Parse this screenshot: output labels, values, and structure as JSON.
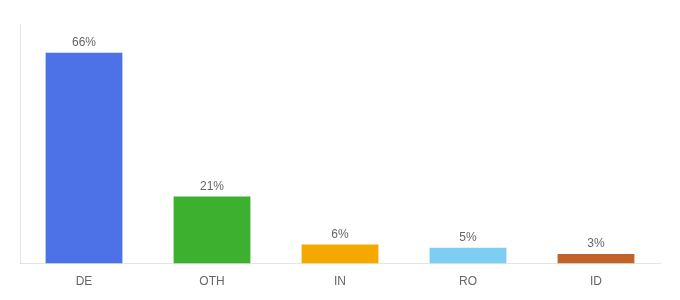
{
  "chart_data": {
    "type": "bar",
    "categories": [
      "DE",
      "OTH",
      "IN",
      "RO",
      "ID"
    ],
    "values": [
      66,
      21,
      6,
      5,
      3
    ],
    "value_labels": [
      "66%",
      "21%",
      "6%",
      "5%",
      "3%"
    ],
    "colors": [
      "#4d72e8",
      "#3db030",
      "#f5a800",
      "#7ecef4",
      "#c0622a"
    ],
    "ylim": [
      0,
      75
    ],
    "grid": false,
    "data_labels": true,
    "tick_labels": "x"
  }
}
